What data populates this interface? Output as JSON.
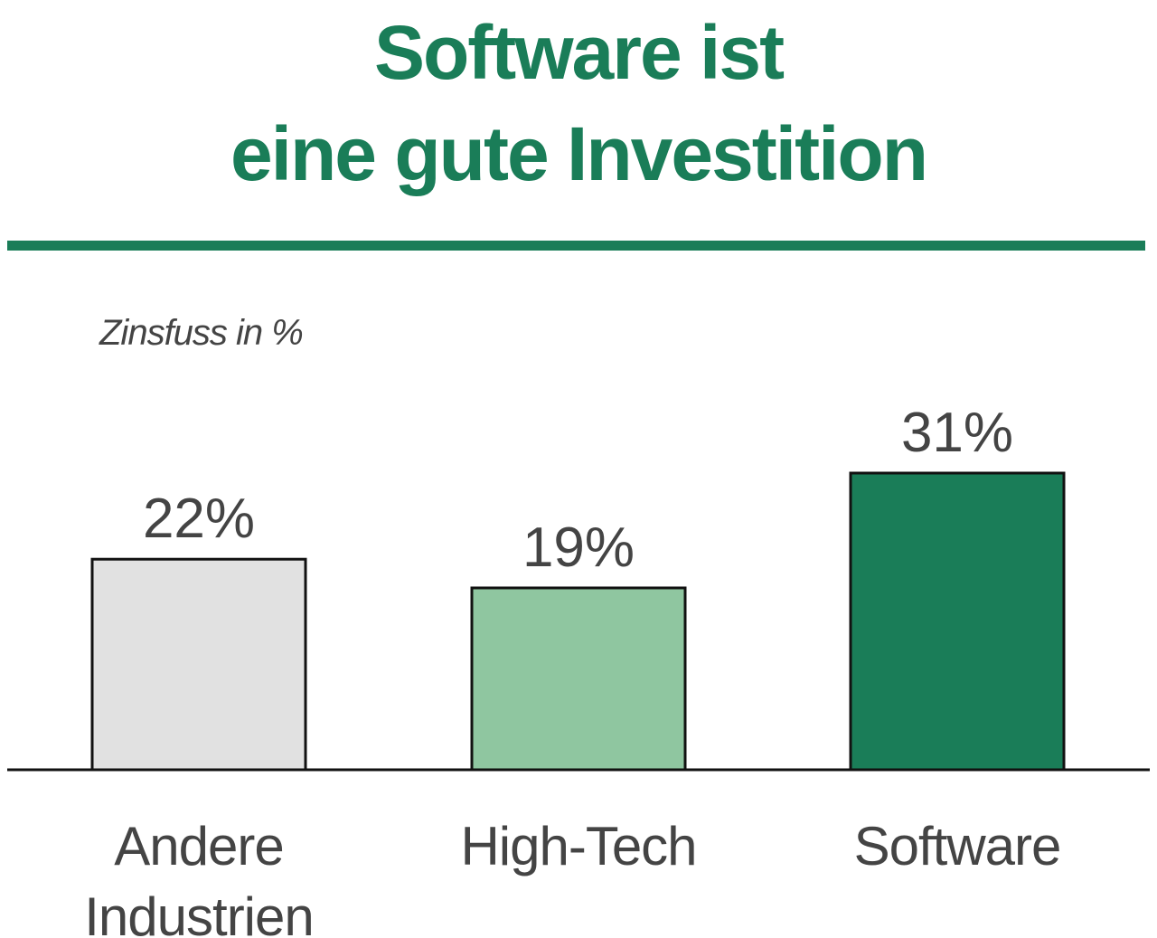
{
  "chart_data": {
    "type": "bar",
    "title_lines": [
      "Software ist",
      "eine gute Investition"
    ],
    "ylabel": "Zinsfuss in %",
    "categories": [
      [
        "Andere",
        "Industrien"
      ],
      [
        "High-Tech"
      ],
      [
        "Software"
      ]
    ],
    "values": [
      22,
      19,
      31
    ],
    "value_labels": [
      "22%",
      "19%",
      "31%"
    ],
    "colors": [
      "#e1e1e1",
      "#8fc6a0",
      "#1a7d58"
    ],
    "ylim": [
      0,
      31
    ],
    "grid": false,
    "legend": "none"
  },
  "colors": {
    "accent": "#1a7d58",
    "text": "#444444",
    "axis": "#111111"
  }
}
